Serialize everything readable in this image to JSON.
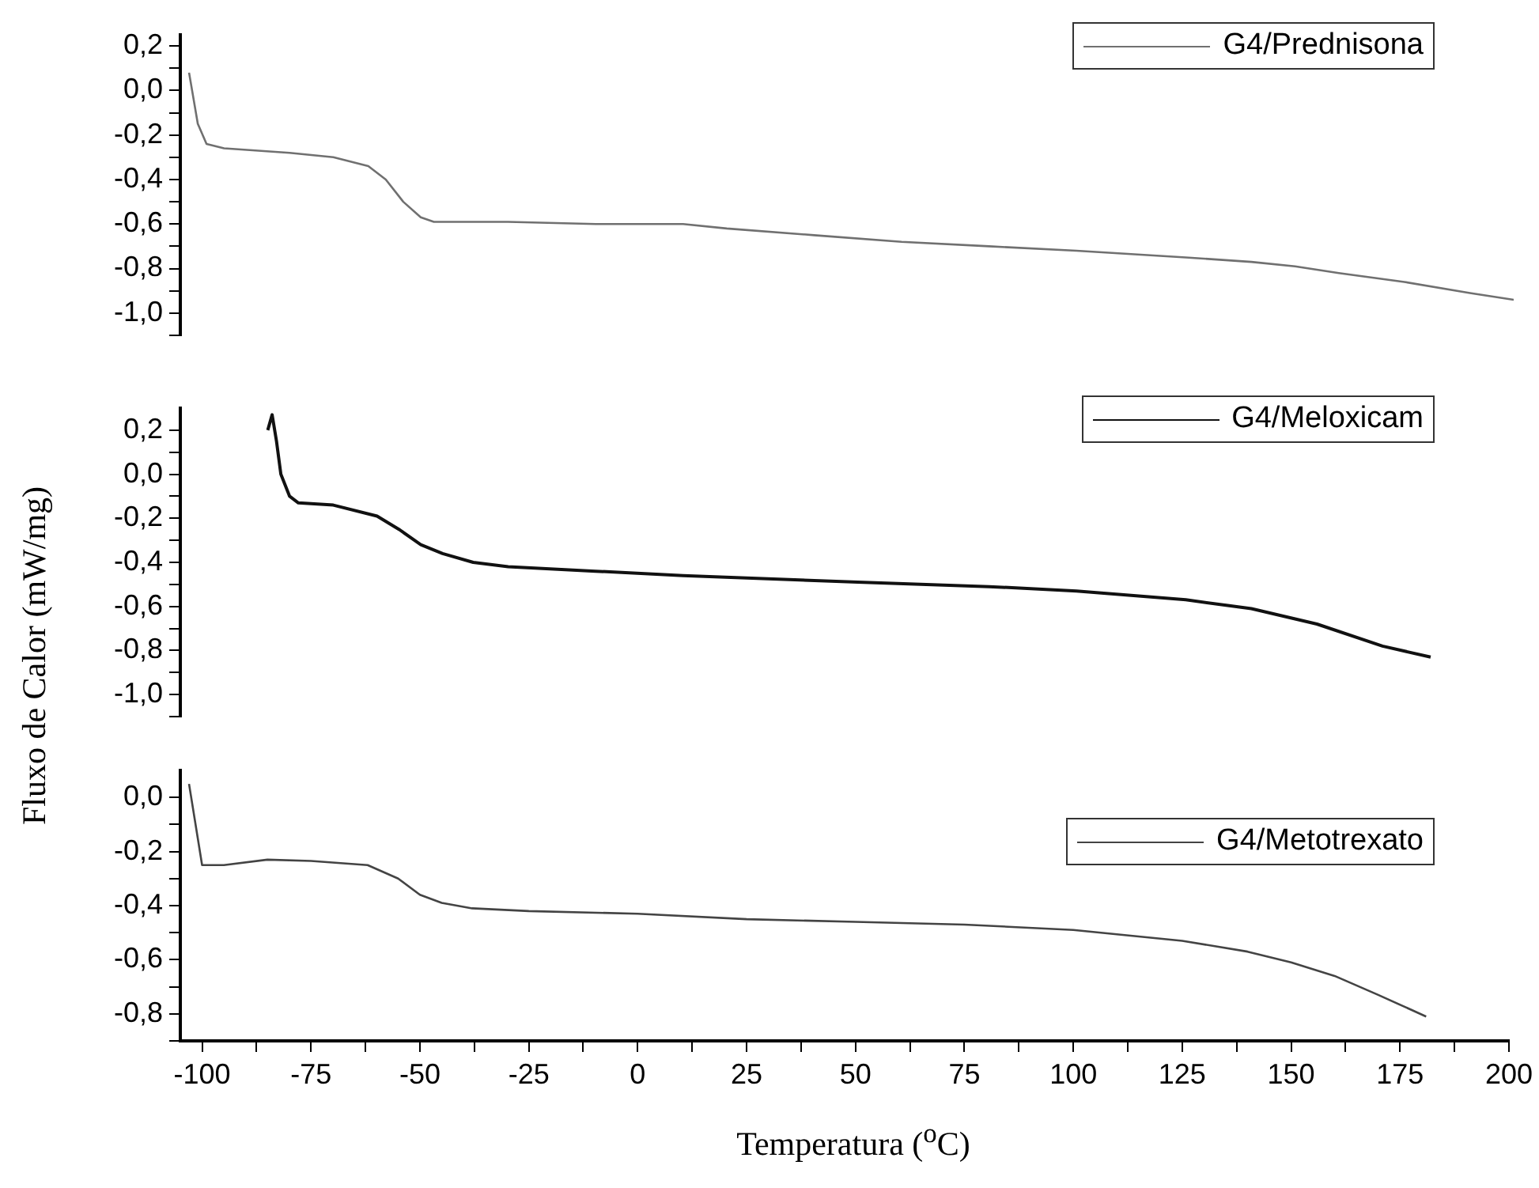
{
  "chart_data": [
    {
      "type": "line",
      "legend": "top right",
      "grid": false,
      "tick_labels": "y",
      "xlim": [
        -105,
        200
      ],
      "ylim": [
        -1.1,
        0.25
      ],
      "yticks": [
        {
          "value": 0.2,
          "label": "0,2"
        },
        {
          "value": 0.1,
          "label": null
        },
        {
          "value": 0.0,
          "label": "0,0"
        },
        {
          "value": -0.1,
          "label": null
        },
        {
          "value": -0.2,
          "label": "-0,2"
        },
        {
          "value": -0.3,
          "label": null
        },
        {
          "value": -0.4,
          "label": "-0,4"
        },
        {
          "value": -0.5,
          "label": null
        },
        {
          "value": -0.6,
          "label": "-0,6"
        },
        {
          "value": -0.7,
          "label": null
        },
        {
          "value": -0.8,
          "label": "-0,8"
        },
        {
          "value": -0.9,
          "label": null
        },
        {
          "value": -1.0,
          "label": "-1,0"
        },
        {
          "value": -1.1,
          "label": null
        }
      ],
      "series": [
        {
          "name": "G4/Prednisona",
          "color": "#707070",
          "x": [
            -103,
            -101,
            -99,
            -95,
            -80,
            -70,
            -62,
            -58,
            -54,
            -50,
            -47,
            -30,
            -10,
            10,
            20,
            40,
            60,
            80,
            100,
            125,
            140,
            150,
            160,
            175,
            190,
            200
          ],
          "values": [
            0.08,
            -0.15,
            -0.24,
            -0.26,
            -0.28,
            -0.3,
            -0.34,
            -0.4,
            -0.5,
            -0.57,
            -0.59,
            -0.59,
            -0.6,
            -0.6,
            -0.62,
            -0.65,
            -0.68,
            -0.7,
            -0.72,
            -0.75,
            -0.77,
            -0.79,
            -0.82,
            -0.86,
            -0.91,
            -0.94
          ]
        }
      ]
    },
    {
      "type": "line",
      "legend": "top right",
      "grid": false,
      "tick_labels": "y",
      "xlim": [
        -105,
        200
      ],
      "ylabel": "Fluxo de Calor (mW/mg)",
      "ylim": [
        -1.1,
        0.3
      ],
      "yticks": [
        {
          "value": 0.2,
          "label": "0,2"
        },
        {
          "value": 0.1,
          "label": null
        },
        {
          "value": 0.0,
          "label": "0,0"
        },
        {
          "value": -0.1,
          "label": null
        },
        {
          "value": -0.2,
          "label": "-0,2"
        },
        {
          "value": -0.3,
          "label": null
        },
        {
          "value": -0.4,
          "label": "-0,4"
        },
        {
          "value": -0.5,
          "label": null
        },
        {
          "value": -0.6,
          "label": "-0,6"
        },
        {
          "value": -0.7,
          "label": null
        },
        {
          "value": -0.8,
          "label": "-0,8"
        },
        {
          "value": -0.9,
          "label": null
        },
        {
          "value": -1.0,
          "label": "-1,0"
        },
        {
          "value": -1.1,
          "label": null
        }
      ],
      "series": [
        {
          "name": "G4/Meloxicam",
          "color": "#111111",
          "x": [
            -85,
            -84,
            -83,
            -82,
            -80,
            -78,
            -70,
            -60,
            -55,
            -50,
            -45,
            -38,
            -30,
            -10,
            10,
            50,
            80,
            100,
            125,
            140,
            155,
            170,
            181
          ],
          "values": [
            0.2,
            0.27,
            0.15,
            0.0,
            -0.1,
            -0.13,
            -0.14,
            -0.19,
            -0.25,
            -0.32,
            -0.36,
            -0.4,
            -0.42,
            -0.44,
            -0.46,
            -0.49,
            -0.51,
            -0.53,
            -0.57,
            -0.61,
            -0.68,
            -0.78,
            -0.83
          ]
        }
      ]
    },
    {
      "type": "line",
      "legend": "top right",
      "grid": false,
      "xlim": [
        -105,
        200
      ],
      "xlabel": "Temperatura ($^{o}$C)",
      "xticks": [
        {
          "value": -100,
          "label": "-100"
        },
        {
          "value": -87.5,
          "label": null
        },
        {
          "value": -75,
          "label": "-75"
        },
        {
          "value": -62.5,
          "label": null
        },
        {
          "value": -50,
          "label": "-50"
        },
        {
          "value": -37.5,
          "label": null
        },
        {
          "value": -25,
          "label": "-25"
        },
        {
          "value": -12.5,
          "label": null
        },
        0,
        {
          "value": 12.5,
          "label": null
        },
        25,
        {
          "value": 37.5,
          "label": null
        },
        50,
        {
          "value": 62.5,
          "label": null
        },
        75,
        {
          "value": 87.5,
          "label": null
        },
        100,
        {
          "value": 112.5,
          "label": null
        },
        125,
        {
          "value": 137.5,
          "label": null
        },
        150,
        {
          "value": 162.5,
          "label": null
        },
        175,
        {
          "value": 187.5,
          "label": null
        },
        200
      ],
      "ylim": [
        -0.9,
        0.1
      ],
      "yticks": [
        {
          "value": 0.0,
          "label": "0,0"
        },
        {
          "value": -0.1,
          "label": null
        },
        {
          "value": -0.2,
          "label": "-0,2"
        },
        {
          "value": -0.3,
          "label": null
        },
        {
          "value": -0.4,
          "label": "-0,4"
        },
        {
          "value": -0.5,
          "label": null
        },
        {
          "value": -0.6,
          "label": "-0,6"
        },
        {
          "value": -0.7,
          "label": null
        },
        {
          "value": -0.8,
          "label": "-0,8"
        },
        {
          "value": -0.9,
          "label": null
        }
      ],
      "series": [
        {
          "name": "G4/Metotrexato",
          "color": "#444444",
          "x": [
            -103,
            -101,
            -100,
            -95,
            -85,
            -75,
            -62,
            -55,
            -50,
            -45,
            -38,
            -25,
            0,
            25,
            50,
            75,
            100,
            125,
            140,
            150,
            160,
            170,
            181
          ],
          "values": [
            0.05,
            -0.15,
            -0.25,
            -0.25,
            -0.23,
            -0.235,
            -0.25,
            -0.3,
            -0.36,
            -0.39,
            -0.41,
            -0.42,
            -0.43,
            -0.45,
            -0.46,
            -0.47,
            -0.49,
            -0.53,
            -0.57,
            -0.61,
            -0.66,
            -0.73,
            -0.81
          ]
        }
      ]
    }
  ]
}
